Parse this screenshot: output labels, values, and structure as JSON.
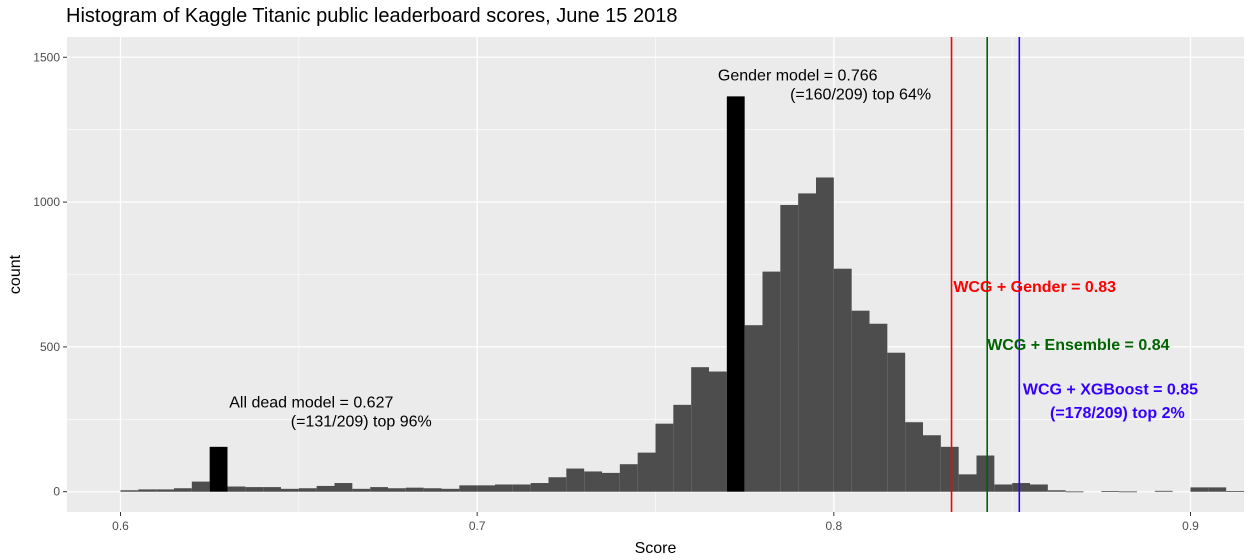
{
  "chart_data": {
    "type": "bar",
    "title": "Histogram of Kaggle Titanic public leaderboard scores, June 15 2018",
    "xlabel": "Score",
    "ylabel": "count",
    "xlim": [
      0.585,
      0.915
    ],
    "ylim": [
      -70,
      1570
    ],
    "x_ticks": [
      0.6,
      0.7,
      0.8,
      0.9
    ],
    "x_tick_labels": [
      "0.6",
      "0.7",
      "0.8",
      "0.9"
    ],
    "y_ticks": [
      0,
      500,
      1000,
      1500
    ],
    "y_tick_labels": [
      "0",
      "500",
      "1000",
      "1500"
    ],
    "grid": true,
    "bin_width": 0.005,
    "bar_color": "#4d4d4d",
    "highlight_color": "#000000",
    "bins": [
      {
        "x": 0.6025,
        "count": 5
      },
      {
        "x": 0.6075,
        "count": 8
      },
      {
        "x": 0.6125,
        "count": 8
      },
      {
        "x": 0.6175,
        "count": 12
      },
      {
        "x": 0.6225,
        "count": 35
      },
      {
        "x": 0.6275,
        "count": 155,
        "highlight": true
      },
      {
        "x": 0.6325,
        "count": 18
      },
      {
        "x": 0.6375,
        "count": 16
      },
      {
        "x": 0.6425,
        "count": 16
      },
      {
        "x": 0.6475,
        "count": 10
      },
      {
        "x": 0.6525,
        "count": 12
      },
      {
        "x": 0.6575,
        "count": 20
      },
      {
        "x": 0.6625,
        "count": 30
      },
      {
        "x": 0.6675,
        "count": 10
      },
      {
        "x": 0.6725,
        "count": 16
      },
      {
        "x": 0.6775,
        "count": 12
      },
      {
        "x": 0.6825,
        "count": 14
      },
      {
        "x": 0.6875,
        "count": 12
      },
      {
        "x": 0.6925,
        "count": 10
      },
      {
        "x": 0.6975,
        "count": 22
      },
      {
        "x": 0.7025,
        "count": 22
      },
      {
        "x": 0.7075,
        "count": 25
      },
      {
        "x": 0.7125,
        "count": 25
      },
      {
        "x": 0.7175,
        "count": 30
      },
      {
        "x": 0.7225,
        "count": 50
      },
      {
        "x": 0.7275,
        "count": 80
      },
      {
        "x": 0.7325,
        "count": 70
      },
      {
        "x": 0.7375,
        "count": 65
      },
      {
        "x": 0.7425,
        "count": 95
      },
      {
        "x": 0.7475,
        "count": 135
      },
      {
        "x": 0.7525,
        "count": 235
      },
      {
        "x": 0.7575,
        "count": 300
      },
      {
        "x": 0.7625,
        "count": 430
      },
      {
        "x": 0.7675,
        "count": 415
      },
      {
        "x": 0.7725,
        "count": 1365,
        "highlight": true
      },
      {
        "x": 0.7775,
        "count": 575
      },
      {
        "x": 0.7825,
        "count": 760
      },
      {
        "x": 0.7875,
        "count": 990
      },
      {
        "x": 0.7925,
        "count": 1030
      },
      {
        "x": 0.7975,
        "count": 1085
      },
      {
        "x": 0.8025,
        "count": 770
      },
      {
        "x": 0.8075,
        "count": 625
      },
      {
        "x": 0.8125,
        "count": 580
      },
      {
        "x": 0.8175,
        "count": 480
      },
      {
        "x": 0.8225,
        "count": 240
      },
      {
        "x": 0.8275,
        "count": 195
      },
      {
        "x": 0.8325,
        "count": 155
      },
      {
        "x": 0.8375,
        "count": 60
      },
      {
        "x": 0.8425,
        "count": 125
      },
      {
        "x": 0.8475,
        "count": 25
      },
      {
        "x": 0.8525,
        "count": 30
      },
      {
        "x": 0.8575,
        "count": 25
      },
      {
        "x": 0.8625,
        "count": 5
      },
      {
        "x": 0.8675,
        "count": 1
      },
      {
        "x": 0.8725,
        "count": 0
      },
      {
        "x": 0.8775,
        "count": 2
      },
      {
        "x": 0.8825,
        "count": 1
      },
      {
        "x": 0.8875,
        "count": 0
      },
      {
        "x": 0.8925,
        "count": 3
      },
      {
        "x": 0.8975,
        "count": 0
      },
      {
        "x": 0.9025,
        "count": 15
      },
      {
        "x": 0.9075,
        "count": 15
      },
      {
        "x": 0.9125,
        "count": 2
      }
    ],
    "vlines": [
      {
        "x": 0.833,
        "color": "#ff0000"
      },
      {
        "x": 0.843,
        "color": "#006400"
      },
      {
        "x": 0.852,
        "color": "#3300ff"
      }
    ],
    "annotations": [
      {
        "text": "Gender model = 0.766",
        "x": 0.7675,
        "y": 1420,
        "anchor": "start",
        "color": "#000000",
        "bold": false
      },
      {
        "text": "(=160/209) top 64%",
        "x": 0.8075,
        "y": 1355,
        "anchor": "middle",
        "color": "#000000",
        "bold": false
      },
      {
        "text": "All dead model = 0.627",
        "x": 0.6535,
        "y": 290,
        "anchor": "middle",
        "color": "#000000",
        "bold": false
      },
      {
        "text": "(=131/209) top 96%",
        "x": 0.6675,
        "y": 225,
        "anchor": "middle",
        "color": "#000000",
        "bold": false
      },
      {
        "text": "WCG + Gender = 0.83",
        "x": 0.8335,
        "y": 690,
        "anchor": "start",
        "color": "#ff0000",
        "bold": true
      },
      {
        "text": "WCG + Ensemble = 0.84",
        "x": 0.843,
        "y": 490,
        "anchor": "start",
        "color": "#006400",
        "bold": true
      },
      {
        "text": "WCG + XGBoost = 0.85",
        "x": 0.853,
        "y": 335,
        "anchor": "start",
        "color": "#3300ff",
        "bold": true
      },
      {
        "text": "(=178/209) top 2%",
        "x": 0.8795,
        "y": 255,
        "anchor": "middle",
        "color": "#3300ff",
        "bold": true
      }
    ]
  }
}
